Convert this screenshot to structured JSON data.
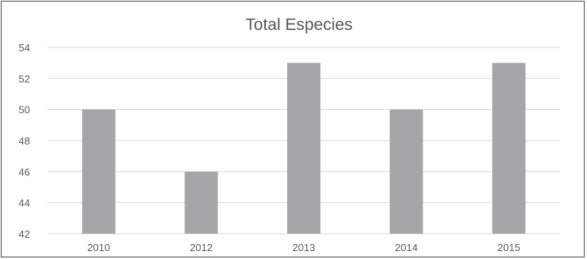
{
  "chart_data": {
    "type": "bar",
    "title": "Total Especies",
    "xlabel": "",
    "ylabel": "",
    "categories": [
      "2010",
      "2012",
      "2013",
      "2014",
      "2015"
    ],
    "values": [
      50,
      46,
      53,
      50,
      53
    ],
    "ylim": [
      42,
      54
    ],
    "yticks": [
      "42",
      "44",
      "46",
      "48",
      "50",
      "52",
      "54"
    ],
    "grid": true,
    "legend": "none",
    "bar_color": "#a6a6a8",
    "grid_color": "#d9d9d9"
  }
}
